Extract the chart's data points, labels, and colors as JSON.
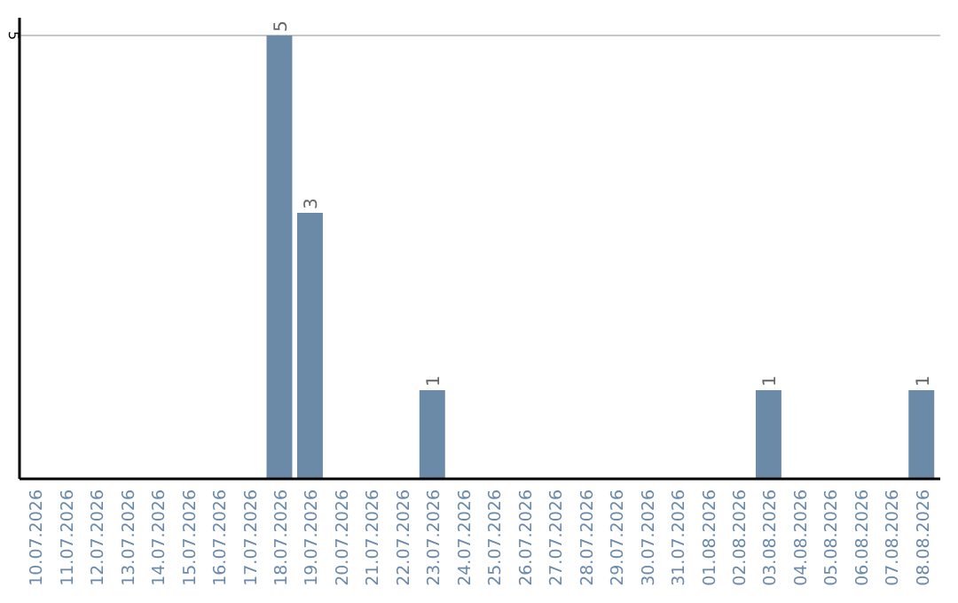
{
  "chart_data": {
    "type": "bar",
    "categories": [
      "10.07.2026",
      "11.07.2026",
      "12.07.2026",
      "13.07.2026",
      "14.07.2026",
      "15.07.2026",
      "16.07.2026",
      "17.07.2026",
      "18.07.2026",
      "19.07.2026",
      "20.07.2026",
      "21.07.2026",
      "22.07.2026",
      "23.07.2026",
      "24.07.2026",
      "25.07.2026",
      "26.07.2026",
      "27.07.2026",
      "28.07.2026",
      "29.07.2026",
      "30.07.2026",
      "31.07.2026",
      "01.08.2026",
      "02.08.2026",
      "03.08.2026",
      "04.08.2026",
      "05.08.2026",
      "06.08.2026",
      "07.08.2026",
      "08.08.2026"
    ],
    "values": [
      0,
      0,
      0,
      0,
      0,
      0,
      0,
      0,
      5,
      3,
      0,
      0,
      0,
      1,
      0,
      0,
      0,
      0,
      0,
      0,
      0,
      0,
      0,
      0,
      1,
      0,
      0,
      0,
      0,
      1
    ],
    "value_labels": [
      null,
      null,
      null,
      null,
      null,
      null,
      null,
      null,
      "5",
      "3",
      null,
      null,
      null,
      "1",
      null,
      null,
      null,
      null,
      null,
      null,
      null,
      null,
      null,
      null,
      "1",
      null,
      null,
      null,
      null,
      "1"
    ],
    "color": "#6a8aa8",
    "ylim": [
      0,
      5.2
    ],
    "yticks": [
      5
    ],
    "grid": "y"
  }
}
